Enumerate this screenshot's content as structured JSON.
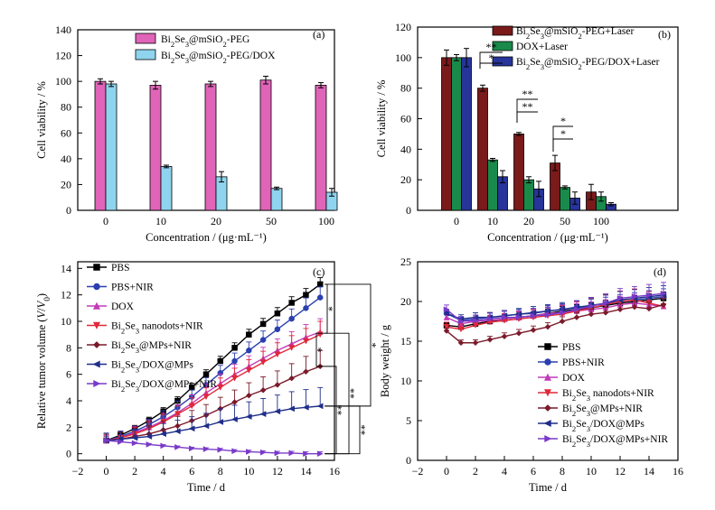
{
  "chart_data": [
    {
      "type": "bar",
      "panel_label": "(a)",
      "xlabel": "Concentration / (μg·mL⁻¹)",
      "ylabel": "Cell viability / %",
      "ylim": [
        0,
        140
      ],
      "yticks": [
        0,
        20,
        40,
        60,
        80,
        100,
        120,
        140
      ],
      "categories": [
        "0",
        "10",
        "20",
        "50",
        "100"
      ],
      "series": [
        {
          "name_parts": [
            "Bi",
            "2",
            "Se",
            "3",
            "@mSiO",
            "2",
            "-PEG"
          ],
          "color": "#e064b8",
          "values": [
            100,
            97,
            98,
            101,
            97
          ],
          "errors": [
            2,
            3,
            2,
            3,
            2
          ]
        },
        {
          "name_parts": [
            "Bi",
            "2",
            "Se",
            "3",
            "@mSiO",
            "2",
            "-PEG/DOX"
          ],
          "color": "#8fd4ee",
          "values": [
            98,
            34,
            26,
            17,
            14
          ],
          "errors": [
            2,
            1,
            4,
            1,
            3
          ]
        }
      ],
      "legend_position": "top-right"
    },
    {
      "type": "bar",
      "panel_label": "(b)",
      "xlabel": "Concentration / (μg·mL⁻¹)",
      "ylabel": "Cell viability / %",
      "ylim": [
        0,
        120
      ],
      "yticks": [
        0,
        20,
        40,
        60,
        80,
        100,
        120
      ],
      "categories": [
        "0",
        "10",
        "20",
        "50",
        "100"
      ],
      "series": [
        {
          "name_parts": [
            "Bi",
            "2",
            "Se",
            "3",
            "@mSiO",
            "2",
            "-PEG+Laser"
          ],
          "color": "#7a1a1a",
          "values": [
            100,
            80,
            50,
            31,
            12
          ],
          "errors": [
            5,
            2,
            1,
            5,
            5
          ]
        },
        {
          "name_parts": [
            "DOX+Laser"
          ],
          "color": "#1a8a4a",
          "values": [
            100,
            33,
            20,
            15,
            9
          ],
          "errors": [
            2,
            1,
            2,
            1,
            3
          ]
        },
        {
          "name_parts": [
            "Bi",
            "2",
            "Se",
            "3",
            "@mSiO",
            "2",
            "-PEG/DOX+Laser"
          ],
          "color": "#27349a",
          "values": [
            100,
            22,
            14,
            8,
            4
          ],
          "errors": [
            6,
            4,
            5,
            4,
            1
          ]
        }
      ],
      "annotations": [
        "*",
        "**",
        "**",
        "**",
        "*",
        "*"
      ],
      "legend_position": "top-right"
    },
    {
      "type": "line",
      "panel_label": "(c)",
      "xlabel": "Time / d",
      "ylabel_parts": [
        "Relative tumor volume (",
        "V",
        "/",
        "V",
        "0",
        ")"
      ],
      "xlim": [
        -2,
        16
      ],
      "xticks": [
        -2,
        0,
        2,
        4,
        6,
        8,
        10,
        12,
        14,
        16
      ],
      "ylim": [
        -0.5,
        14.5
      ],
      "yticks": [
        0,
        2,
        4,
        6,
        8,
        10,
        12,
        14
      ],
      "x": [
        0,
        1,
        2,
        3,
        4,
        5,
        6,
        7,
        8,
        9,
        10,
        11,
        12,
        13,
        14,
        15
      ],
      "series": [
        {
          "name_parts": [
            "PBS"
          ],
          "color": "#000000",
          "marker": "square",
          "values": [
            1,
            1.4,
            1.9,
            2.5,
            3.2,
            4.0,
            5.0,
            6.0,
            7.0,
            8.0,
            9.0,
            9.8,
            10.6,
            11.4,
            12.0,
            12.8
          ],
          "err": 0.5
        },
        {
          "name_parts": [
            "PBS+NIR"
          ],
          "color": "#2a3fb0",
          "marker": "circle",
          "values": [
            1,
            1.3,
            1.7,
            2.2,
            2.8,
            3.5,
            4.3,
            5.2,
            6.1,
            7.0,
            7.8,
            8.6,
            9.4,
            10.2,
            11.0,
            11.8
          ],
          "err": 0.8
        },
        {
          "name_parts": [
            "DOX"
          ],
          "color": "#c23ab8",
          "marker": "triangle-up",
          "values": [
            1,
            1.2,
            1.6,
            2.0,
            2.5,
            3.1,
            3.8,
            4.6,
            5.3,
            6.0,
            6.6,
            7.2,
            7.8,
            8.3,
            8.8,
            9.2
          ],
          "err": 1.0
        },
        {
          "name_parts": [
            "Bi",
            "2",
            "Se",
            "3",
            " nanodots+NIR"
          ],
          "color": "#e0283a",
          "marker": "triangle-down",
          "values": [
            1,
            1.2,
            1.5,
            1.9,
            2.4,
            3.0,
            3.6,
            4.3,
            5.0,
            5.7,
            6.3,
            6.9,
            7.5,
            8.0,
            8.5,
            9.0
          ],
          "err": 1.0
        },
        {
          "name_parts": [
            "Bi",
            "2",
            "Se",
            "3",
            "@MPs+NIR"
          ],
          "color": "#7a1a2a",
          "marker": "diamond",
          "values": [
            1,
            1.1,
            1.3,
            1.5,
            1.8,
            2.1,
            2.5,
            2.9,
            3.4,
            3.9,
            4.4,
            4.8,
            5.2,
            5.7,
            6.2,
            6.6
          ],
          "err": 1.2
        },
        {
          "name_parts": [
            "Bi",
            "2",
            "Se",
            "3",
            "/DOX@MPs"
          ],
          "color": "#1e2e8a",
          "marker": "triangle-left",
          "values": [
            1,
            1.1,
            1.2,
            1.3,
            1.5,
            1.7,
            1.9,
            2.1,
            2.4,
            2.6,
            2.8,
            3.0,
            3.2,
            3.4,
            3.5,
            3.6
          ],
          "err": 1.4
        },
        {
          "name_parts": [
            "Bi",
            "2",
            "Se",
            "3",
            "/DOX@MPs+NIR"
          ],
          "color": "#7a3ac8",
          "marker": "triangle-right",
          "values": [
            1,
            0.9,
            0.8,
            0.7,
            0.6,
            0.5,
            0.4,
            0.35,
            0.3,
            0.2,
            0.15,
            0.1,
            0.05,
            0.05,
            0.0,
            0.0
          ],
          "err": 0.15
        }
      ],
      "annotations": [
        "*",
        "*",
        "*",
        "**",
        "**",
        "**"
      ],
      "legend_position": "top-left"
    },
    {
      "type": "line",
      "panel_label": "(d)",
      "xlabel": "Time / d",
      "ylabel": "Body weight / g",
      "xlim": [
        -2,
        16
      ],
      "xticks": [
        -2,
        0,
        2,
        4,
        6,
        8,
        10,
        12,
        14,
        16
      ],
      "ylim": [
        0,
        25
      ],
      "yticks": [
        0,
        5,
        10,
        15,
        20,
        25
      ],
      "x": [
        0,
        1,
        2,
        3,
        4,
        5,
        6,
        7,
        8,
        9,
        10,
        11,
        12,
        13,
        14,
        15
      ],
      "series": [
        {
          "name_parts": [
            "PBS"
          ],
          "color": "#000000",
          "marker": "square",
          "values": [
            17.0,
            16.8,
            17.2,
            17.5,
            17.8,
            18.0,
            18.2,
            18.5,
            18.8,
            19.0,
            19.2,
            19.5,
            19.8,
            20.0,
            20.2,
            20.4
          ],
          "err": 0.8
        },
        {
          "name_parts": [
            "PBS+NIR"
          ],
          "color": "#2a3fb0",
          "marker": "circle",
          "values": [
            18.5,
            17.6,
            17.8,
            18.0,
            18.2,
            18.4,
            18.5,
            18.8,
            19.0,
            19.3,
            19.5,
            19.7,
            20.0,
            20.2,
            20.4,
            20.6
          ],
          "err": 1.0
        },
        {
          "name_parts": [
            "DOX"
          ],
          "color": "#c23ab8",
          "marker": "triangle-up",
          "values": [
            18.0,
            17.2,
            17.5,
            17.6,
            17.8,
            18.0,
            18.2,
            18.5,
            18.6,
            18.8,
            19.0,
            19.2,
            19.6,
            19.8,
            19.6,
            19.4
          ],
          "err": 1.2
        },
        {
          "name_parts": [
            "Bi",
            "2",
            "Se",
            "3",
            " nanodots+NIR"
          ],
          "color": "#e0283a",
          "marker": "triangle-down",
          "values": [
            16.8,
            16.5,
            17.0,
            17.4,
            17.6,
            17.8,
            18.0,
            18.2,
            18.4,
            18.8,
            19.2,
            19.6,
            20.0,
            20.2,
            19.8,
            19.4
          ],
          "err": 1.5
        },
        {
          "name_parts": [
            "Bi",
            "2",
            "Se",
            "3",
            "@MPs+NIR"
          ],
          "color": "#7a1a2a",
          "marker": "diamond",
          "values": [
            16.3,
            14.8,
            14.8,
            15.2,
            15.6,
            16.0,
            16.4,
            16.8,
            17.5,
            18.0,
            18.4,
            18.6,
            19.0,
            19.3,
            19.1,
            19.6
          ],
          "err": 0.8
        },
        {
          "name_parts": [
            "Bi",
            "2",
            "Se",
            "3",
            "/DOX@MPs"
          ],
          "color": "#1e2e8a",
          "marker": "triangle-left",
          "values": [
            18.5,
            17.8,
            18.0,
            18.0,
            18.2,
            18.4,
            18.6,
            18.8,
            19.0,
            19.2,
            19.5,
            19.8,
            20.2,
            20.4,
            20.6,
            20.8
          ],
          "err": 1.2
        },
        {
          "name_parts": [
            "Bi",
            "2",
            "Se",
            "3",
            "/DOX@MPs+NIR"
          ],
          "color": "#7a3ac8",
          "marker": "triangle-right",
          "values": [
            19.0,
            17.5,
            17.6,
            17.8,
            18.0,
            18.0,
            18.2,
            18.3,
            18.6,
            19.0,
            19.4,
            19.8,
            20.4,
            20.6,
            20.8,
            21.0
          ],
          "err": 1.4
        }
      ],
      "legend_position": "bottom-left"
    }
  ]
}
